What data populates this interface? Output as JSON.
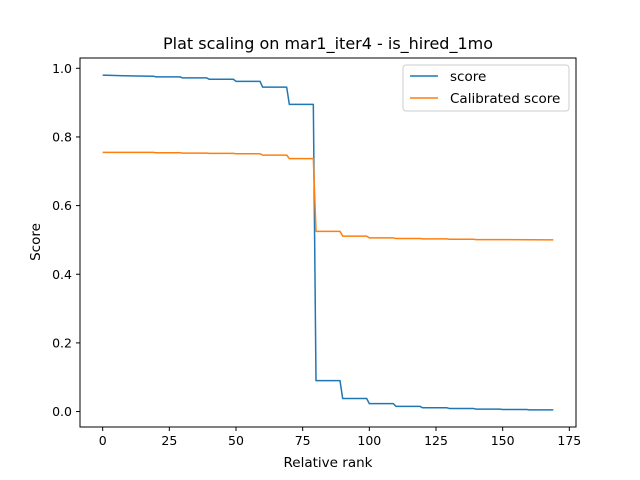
{
  "chart_data": {
    "type": "line",
    "title": "Plat scaling on mar1_iter4 - is_hired_1mo",
    "xlabel": "Relative rank",
    "ylabel": "Score",
    "xlim": [
      -8.5,
      177.5
    ],
    "ylim": [
      -0.045,
      1.03
    ],
    "x_ticks": [
      0,
      25,
      50,
      75,
      100,
      125,
      150,
      175
    ],
    "x_tick_labels": [
      "0",
      "25",
      "50",
      "75",
      "100",
      "125",
      "150",
      "175"
    ],
    "y_ticks": [
      0.0,
      0.2,
      0.4,
      0.6,
      0.8,
      1.0
    ],
    "y_tick_labels": [
      "0.0",
      "0.2",
      "0.4",
      "0.6",
      "0.8",
      "1.0"
    ],
    "grid": false,
    "legend_position": "top-right",
    "series": [
      {
        "name": "score",
        "color": "#1f77b4",
        "points": [
          [
            0,
            0.98
          ],
          [
            10,
            0.978
          ],
          [
            19,
            0.977
          ],
          [
            20,
            0.975
          ],
          [
            29,
            0.975
          ],
          [
            30,
            0.972
          ],
          [
            39,
            0.972
          ],
          [
            40,
            0.968
          ],
          [
            49,
            0.968
          ],
          [
            50,
            0.962
          ],
          [
            59,
            0.962
          ],
          [
            60,
            0.945
          ],
          [
            69,
            0.945
          ],
          [
            70,
            0.895
          ],
          [
            79,
            0.895
          ],
          [
            80,
            0.09
          ],
          [
            89,
            0.09
          ],
          [
            90,
            0.038
          ],
          [
            99,
            0.038
          ],
          [
            100,
            0.023
          ],
          [
            109,
            0.023
          ],
          [
            110,
            0.015
          ],
          [
            119,
            0.015
          ],
          [
            120,
            0.011
          ],
          [
            129,
            0.011
          ],
          [
            130,
            0.009
          ],
          [
            139,
            0.009
          ],
          [
            140,
            0.007
          ],
          [
            149,
            0.007
          ],
          [
            150,
            0.006
          ],
          [
            159,
            0.006
          ],
          [
            160,
            0.005
          ],
          [
            169,
            0.005
          ]
        ]
      },
      {
        "name": "Calibrated score",
        "color": "#ff7f0e",
        "points": [
          [
            0,
            0.755
          ],
          [
            19,
            0.755
          ],
          [
            20,
            0.754
          ],
          [
            29,
            0.754
          ],
          [
            30,
            0.753
          ],
          [
            39,
            0.753
          ],
          [
            40,
            0.752
          ],
          [
            49,
            0.752
          ],
          [
            50,
            0.751
          ],
          [
            59,
            0.751
          ],
          [
            60,
            0.747
          ],
          [
            69,
            0.747
          ],
          [
            70,
            0.737
          ],
          [
            79,
            0.737
          ],
          [
            80,
            0.525
          ],
          [
            89,
            0.525
          ],
          [
            90,
            0.511
          ],
          [
            99,
            0.511
          ],
          [
            100,
            0.506
          ],
          [
            109,
            0.506
          ],
          [
            110,
            0.504
          ],
          [
            119,
            0.504
          ],
          [
            120,
            0.503
          ],
          [
            129,
            0.503
          ],
          [
            130,
            0.502
          ],
          [
            139,
            0.502
          ],
          [
            140,
            0.501
          ],
          [
            149,
            0.501
          ],
          [
            150,
            0.501
          ],
          [
            169,
            0.5
          ]
        ]
      }
    ]
  }
}
